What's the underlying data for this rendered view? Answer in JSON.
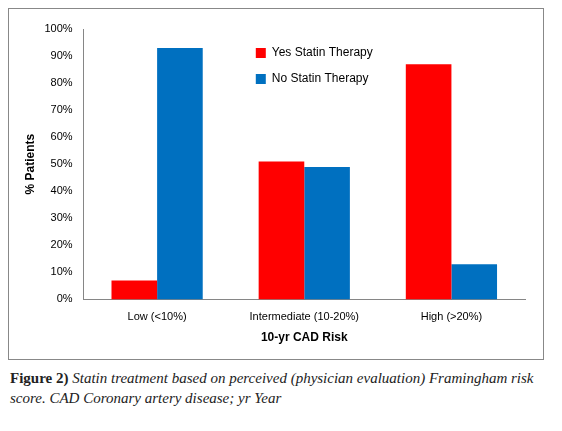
{
  "chart_data": {
    "type": "bar",
    "x_label": "10-yr CAD Risk",
    "y_label": "% Patients",
    "categories": [
      "Low (<10%)",
      "Intermediate (10-20%)",
      "High (>20%)"
    ],
    "series": [
      {
        "name": "Yes Statin Therapy",
        "color": "#ff0000",
        "values": [
          7,
          51,
          87
        ]
      },
      {
        "name": "No Statin Therapy",
        "color": "#0070c0",
        "values": [
          93,
          49,
          13
        ]
      }
    ],
    "ylim": [
      0,
      100
    ],
    "yticks": [
      {
        "value": 0,
        "label": "0%"
      },
      {
        "value": 10,
        "label": "10%"
      },
      {
        "value": 20,
        "label": "20%"
      },
      {
        "value": 30,
        "label": "30%"
      },
      {
        "value": 40,
        "label": "40%"
      },
      {
        "value": 50,
        "label": "50%"
      },
      {
        "value": 60,
        "label": "60%"
      },
      {
        "value": 70,
        "label": "70%"
      },
      {
        "value": 80,
        "label": "80%"
      },
      {
        "value": 90,
        "label": "90%"
      },
      {
        "value": 100,
        "label": "100%"
      }
    ],
    "grid": false,
    "legend": "upper center"
  },
  "caption_label": "Figure 2)",
  "caption": "Statin treatment based on perceived (physician evaluation) Framingham risk score. CAD Coronary artery disease; yr Year"
}
